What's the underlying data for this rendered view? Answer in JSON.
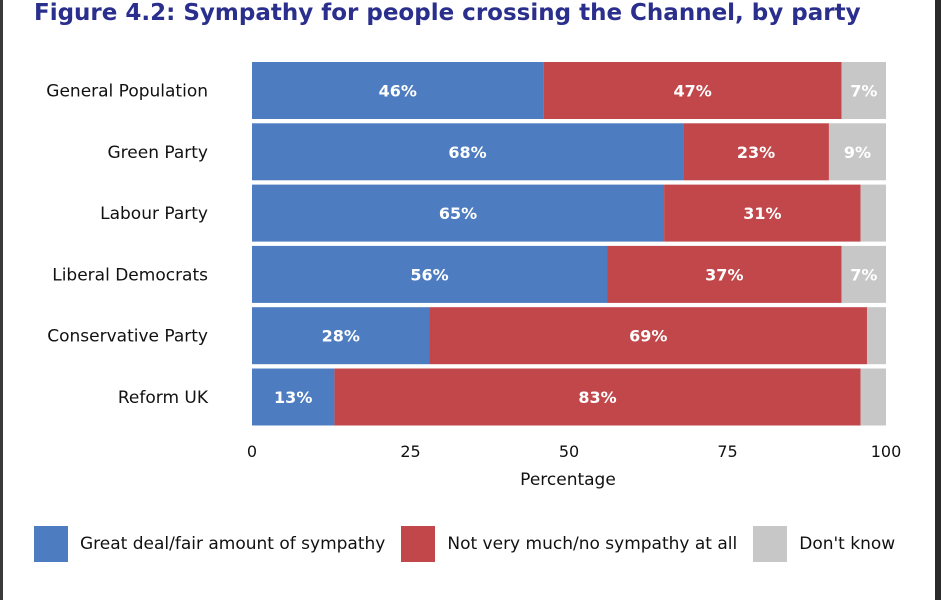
{
  "chart_data": {
    "type": "bar",
    "orientation": "horizontal",
    "stacked": true,
    "title": "Figure 4.2:  Sympathy for people crossing the Channel, by party",
    "xlabel": "Percentage",
    "ylabel": "",
    "xlim": [
      0,
      100
    ],
    "xticks": [
      0,
      25,
      50,
      75,
      100
    ],
    "grid": false,
    "legend_position": "bottom",
    "categories": [
      "General Population",
      "Green Party",
      "Labour Party",
      "Liberal Democrats",
      "Conservative Party",
      "Reform UK"
    ],
    "series": [
      {
        "name": "Great deal/fair amount of sympathy",
        "color": "#4d7cc0",
        "values": [
          46,
          68,
          65,
          56,
          28,
          13
        ],
        "labels": [
          "46%",
          "68%",
          "65%",
          "56%",
          "28%",
          "13%"
        ]
      },
      {
        "name": "Not very much/no sympathy at all",
        "color": "#c1474a",
        "values": [
          47,
          23,
          31,
          37,
          69,
          83
        ],
        "labels": [
          "47%",
          "23%",
          "31%",
          "37%",
          "69%",
          "83%"
        ]
      },
      {
        "name": "Don't know",
        "color": "#c7c7c7",
        "values": [
          7,
          9,
          4,
          7,
          3,
          4
        ],
        "labels": [
          "7%",
          "9%",
          "",
          "7%",
          "",
          ""
        ]
      }
    ]
  }
}
